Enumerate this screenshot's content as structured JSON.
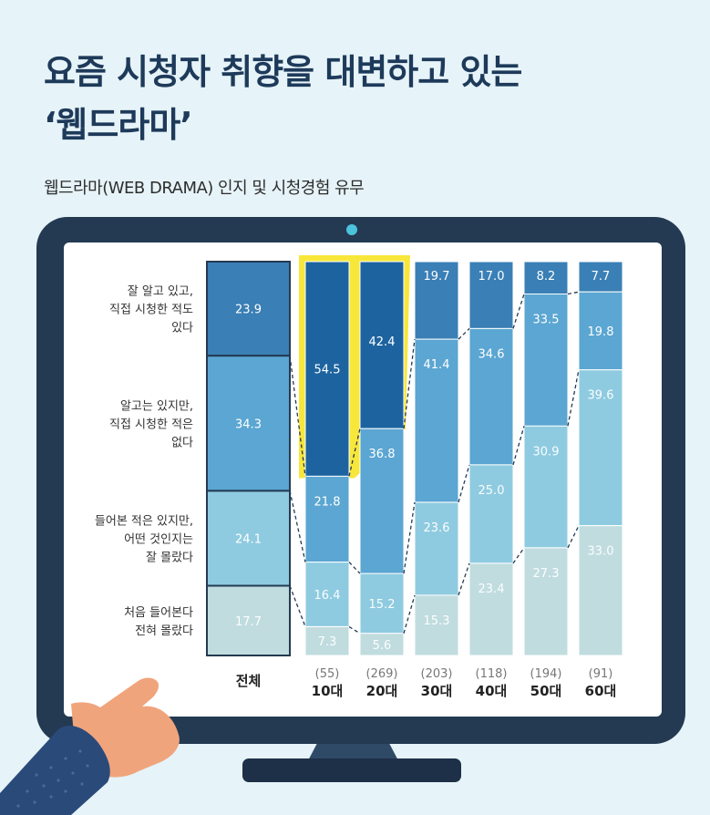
{
  "title_lines": [
    "요즘 시청자 취향을 대변하고 있는",
    "‘웹드라마’"
  ],
  "chart_data": {
    "type": "bar",
    "stacked": true,
    "percent": true,
    "title": "웹드라마(WEB DRAMA) 인지 및 시청경험 유무",
    "categories": [
      "전체",
      "10대",
      "20대",
      "30대",
      "40대",
      "50대",
      "60대"
    ],
    "sample_sizes": [
      "",
      "(55)",
      "(269)",
      "(203)",
      "(118)",
      "(194)",
      "(91)"
    ],
    "series": [
      {
        "name": "잘 알고 있고, 직접 시청한 적도 있다",
        "values": [
          23.9,
          54.5,
          42.4,
          19.7,
          17.0,
          8.2,
          7.7
        ],
        "color": "#3a7fb5"
      },
      {
        "name": "알고는 있지만, 직접 시청한 적은 없다",
        "values": [
          34.3,
          21.8,
          36.8,
          41.4,
          34.6,
          33.5,
          19.8
        ],
        "color": "#5ba6d2"
      },
      {
        "name": "들어본 적은 있지만, 어떤 것인지는 잘 몰랐다",
        "values": [
          24.1,
          16.4,
          15.2,
          23.6,
          25.0,
          30.9,
          39.6
        ],
        "color": "#8fcbe0"
      },
      {
        "name": "처음 들어본다 전혀 몰랐다",
        "values": [
          17.7,
          7.3,
          5.6,
          15.3,
          23.4,
          27.3,
          33.0
        ],
        "color": "#c0dcdf"
      }
    ],
    "series_label_lines": [
      [
        "잘 알고 있고,",
        "직접 시청한 적도",
        "있다"
      ],
      [
        "알고는 있지만,",
        "직접 시청한 적은",
        "없다"
      ],
      [
        "들어본 적은 있지만,",
        "어떤 것인지는",
        "잘 몰랐다"
      ],
      [
        "처음 들어본다",
        "전혀 몰랐다"
      ]
    ],
    "highlight_color": "#f8e73b",
    "highlight_series_color": "#1d63a0",
    "highlighted": [
      {
        "category": "10대",
        "series": "잘 알고 있고, 직접 시청한 적도 있다"
      },
      {
        "category": "20대",
        "series": "잘 알고 있고, 직접 시청한 적도 있다"
      }
    ],
    "total_bar_outline": "#243a52",
    "ylim": [
      0,
      100
    ]
  },
  "colors": {
    "background": "#e6f3f8",
    "title": "#1e3a5a",
    "monitor": "#243a52",
    "screen": "#ffffff",
    "sleeve": "#2a4a7a",
    "skin": "#f0a47c"
  },
  "decor": {
    "monitor_icon": "desktop-monitor-icon",
    "hand_icon": "pointing-hand-icon"
  }
}
